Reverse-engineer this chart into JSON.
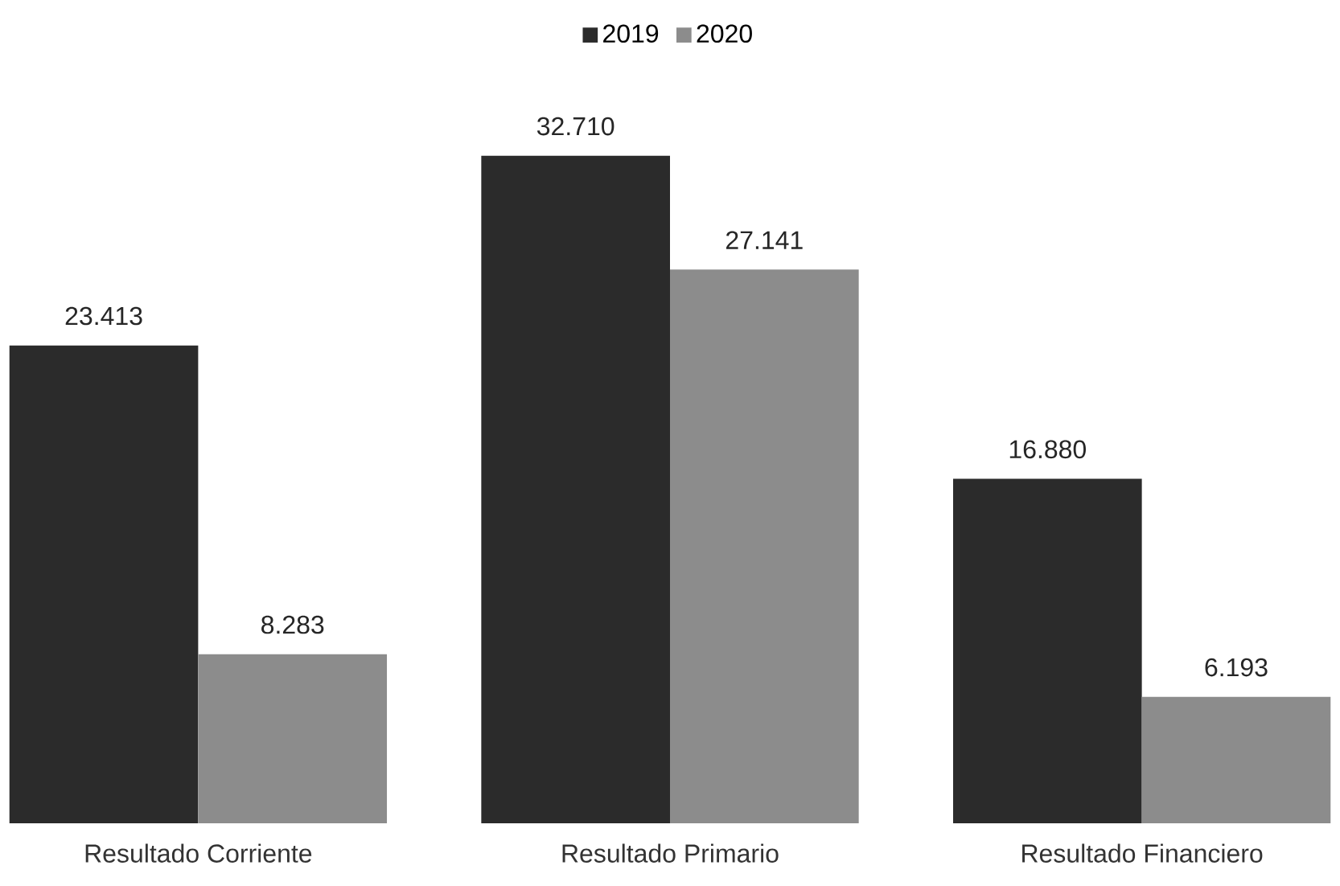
{
  "chart_data": {
    "type": "bar",
    "categories": [
      "Resultado Corriente",
      "Resultado Primario",
      "Resultado Financiero"
    ],
    "series": [
      {
        "name": "2019",
        "color": "#2b2b2b",
        "values": [
          23413,
          32710,
          16880
        ],
        "value_labels": [
          "23.413",
          "32.710",
          "16.880"
        ]
      },
      {
        "name": "2020",
        "color": "#8c8c8c",
        "values": [
          8283,
          27141,
          6193
        ],
        "value_labels": [
          "8.283",
          "27.141",
          "6.193"
        ]
      }
    ],
    "legend": "top"
  }
}
